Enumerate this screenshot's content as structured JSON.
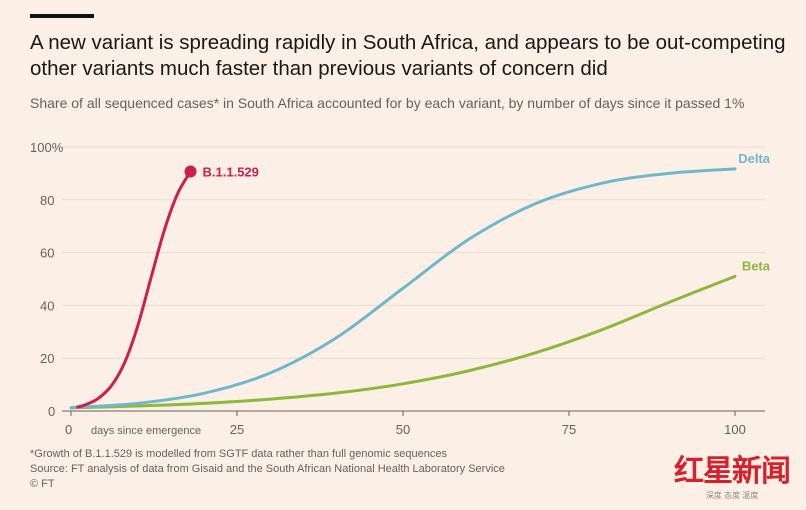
{
  "title": "A new variant is spreading rapidly in South Africa, and appears to be out-competing other variants much faster than previous variants of concern did",
  "subtitle": "Share of all sequenced cases* in South Africa accounted for by each variant, by number of days since it passed 1%",
  "chart_data": {
    "type": "line",
    "xlabel": "days since emergence",
    "ylabel": "",
    "xlim": [
      0,
      100
    ],
    "ylim": [
      0,
      100
    ],
    "x_ticks": [
      "0",
      "25",
      "50",
      "75",
      "100"
    ],
    "y_ticks": [
      "0",
      "20",
      "40",
      "60",
      "80",
      "100%"
    ],
    "grid": true,
    "series": [
      {
        "name": "B.1.1.529",
        "color": "#cc1f4d",
        "x": [
          1,
          2,
          4,
          6,
          8,
          10,
          12,
          14,
          16,
          18
        ],
        "values": [
          1.5,
          2.2,
          4.6,
          9.3,
          17.9,
          31.8,
          50,
          68,
          82,
          90.7
        ],
        "end_marker": true
      },
      {
        "name": "Delta",
        "color": "#6fb8cc",
        "x": [
          0,
          10,
          20,
          30,
          40,
          50,
          60,
          70,
          80,
          90,
          100
        ],
        "values": [
          1.3,
          2.9,
          6.7,
          14.4,
          27.8,
          46.5,
          65.2,
          78.6,
          86.3,
          90.0,
          91.7
        ]
      },
      {
        "name": "Beta",
        "color": "#8cb83c",
        "x": [
          0,
          10,
          20,
          30,
          40,
          50,
          60,
          70,
          80,
          90,
          100
        ],
        "values": [
          1.2,
          1.9,
          2.9,
          4.5,
          6.8,
          10.3,
          15.3,
          22.1,
          30.8,
          41.1,
          51
        ]
      }
    ]
  },
  "footnotes": {
    "note": "*Growth of B.1.1.529 is modelled from SGTF data rather than full genomic sequences",
    "source": "Source: FT analysis of data from Gisaid and the South African National Health Laboratory Service",
    "copyright": "© FT"
  },
  "watermark": {
    "main": "红星新闻",
    "sub": "深度 态度 温度"
  }
}
